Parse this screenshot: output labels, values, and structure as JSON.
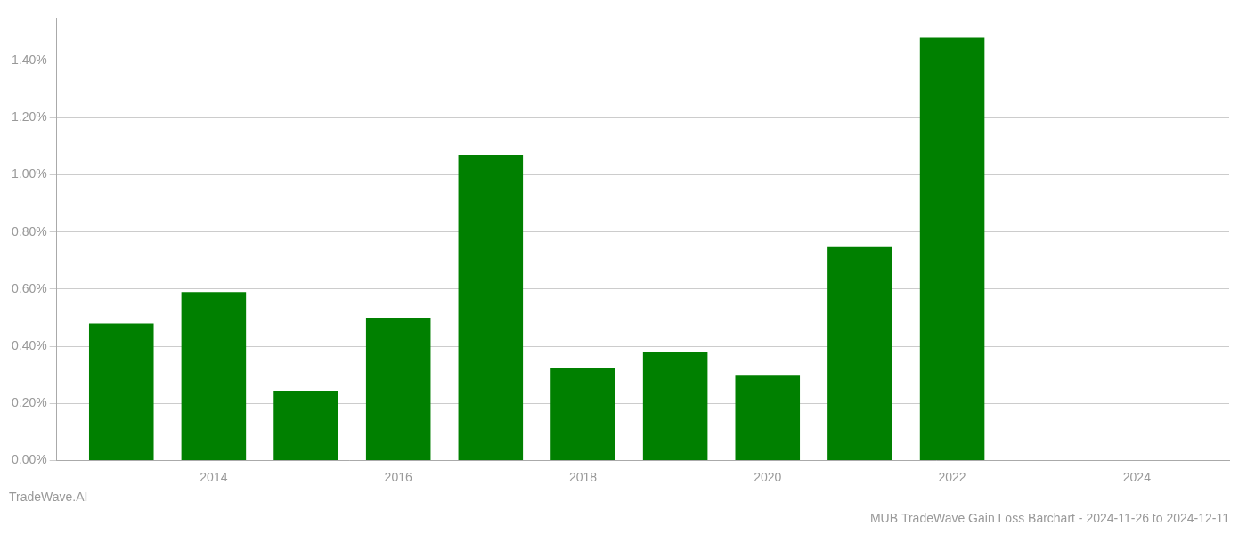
{
  "chart_data": {
    "type": "bar",
    "title": "MUB TradeWave Gain Loss Barchart - 2024-11-26 to 2024-12-11",
    "annotations": [
      "TradeWave.AI"
    ],
    "x": [
      2013,
      2014,
      2015,
      2016,
      2017,
      2018,
      2019,
      2020,
      2021,
      2022
    ],
    "values": [
      0.0048,
      0.0059,
      0.00245,
      0.005,
      0.0107,
      0.00325,
      0.0038,
      0.003,
      0.0075,
      0.0148
    ],
    "color": "#008000",
    "xlim": [
      2012.3,
      2025.0
    ],
    "xticks": [
      2014,
      2016,
      2018,
      2020,
      2022,
      2024
    ],
    "ylim": [
      0,
      0.0155
    ],
    "yticks": [
      {
        "value": 0.0,
        "label": "0.00%"
      },
      {
        "value": 0.002,
        "label": "0.20%"
      },
      {
        "value": 0.004,
        "label": "0.40%"
      },
      {
        "value": 0.006,
        "label": "0.60%"
      },
      {
        "value": 0.008,
        "label": "0.80%"
      },
      {
        "value": 0.01,
        "label": "1.00%"
      },
      {
        "value": 0.012,
        "label": "1.20%"
      },
      {
        "value": 0.014,
        "label": "1.40%"
      }
    ],
    "grid": "y"
  }
}
